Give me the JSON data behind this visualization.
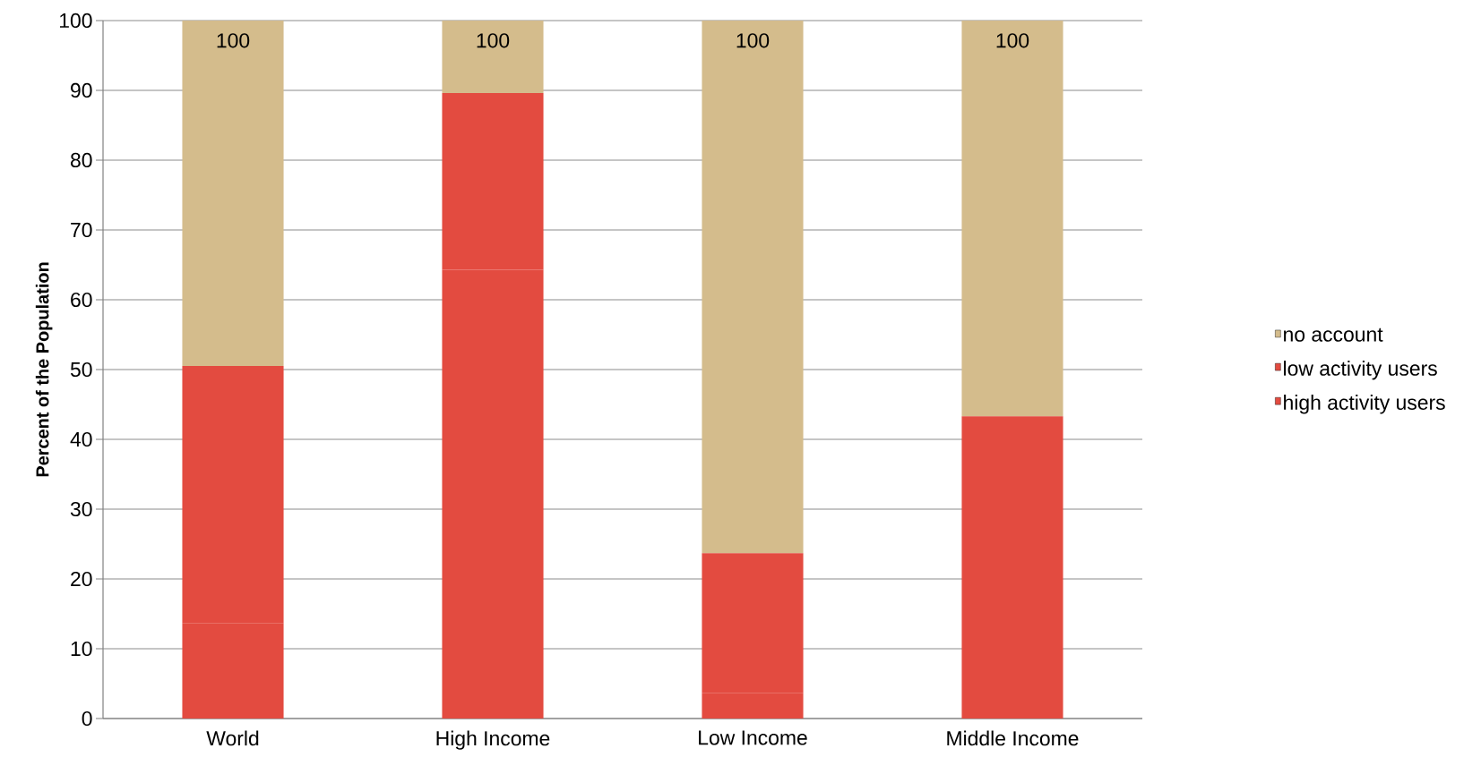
{
  "chart_data": {
    "type": "bar",
    "stacked": true,
    "ylabel": "Percent of the Population",
    "categories": [
      "World",
      "High Income",
      "Low Income",
      "Middle Income"
    ],
    "series": [
      {
        "name": "high activity users",
        "color": "#e34b40",
        "values": [
          13.7,
          64.3,
          3.7,
          7.3
        ]
      },
      {
        "name": "low activity users",
        "color": "#e34b40",
        "values": [
          36.8,
          25.3,
          20.0,
          36.0
        ]
      },
      {
        "name": "no account",
        "color": "#d4bc8c",
        "values": [
          49.5,
          10.4,
          76.3,
          56.7
        ]
      }
    ],
    "totals": [
      "100",
      "100",
      "100",
      "100"
    ],
    "ylim": [
      0,
      100
    ],
    "yticks": [
      0,
      10,
      20,
      30,
      40,
      50,
      60,
      70,
      80,
      90,
      100
    ],
    "grid": "y",
    "legend": "right"
  }
}
